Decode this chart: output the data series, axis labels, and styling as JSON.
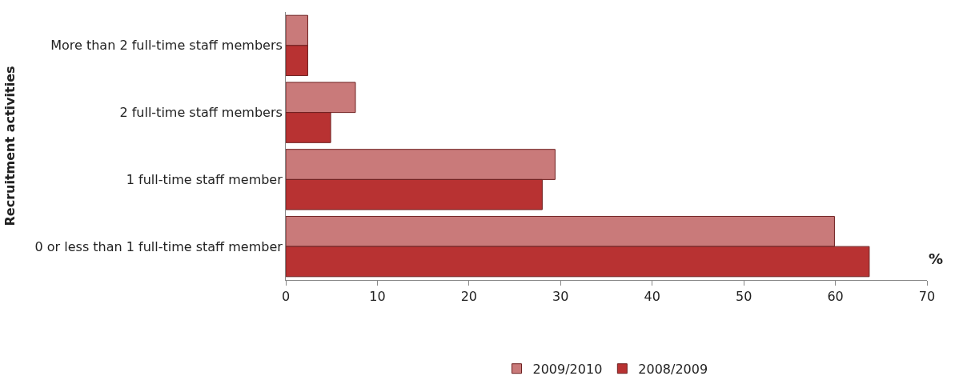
{
  "chart_data": {
    "type": "bar",
    "orientation": "horizontal",
    "xlabel": "%",
    "ylabel": "Recruitment activities",
    "categories": [
      "More than 2 full-time staff members",
      "2 full-time staff members",
      "1 full-time staff member",
      "0 or less than 1 full-time staff member"
    ],
    "series": [
      {
        "name": "2009/2010",
        "color": "#c97a7a",
        "values": [
          2.4,
          7.6,
          29.4,
          59.9
        ]
      },
      {
        "name": "2008/2009",
        "color": "#b83232",
        "values": [
          2.4,
          4.9,
          28.0,
          63.7
        ]
      }
    ],
    "xlim": [
      0,
      70
    ],
    "xticks": [
      0,
      10,
      20,
      30,
      40,
      50,
      60,
      70
    ],
    "legend": "bottom"
  }
}
